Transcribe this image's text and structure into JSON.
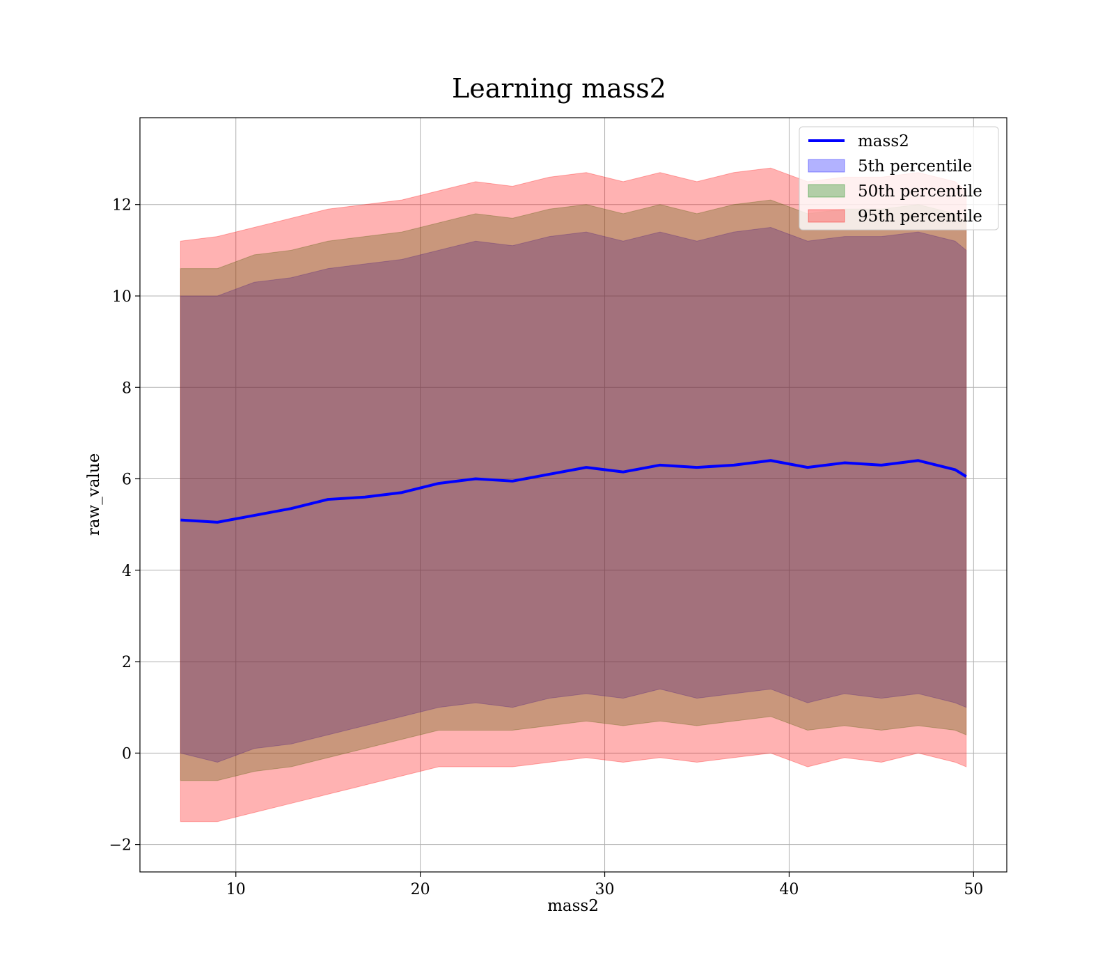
{
  "chart_data": {
    "type": "area",
    "title": "Learning mass2",
    "xlabel": "mass2",
    "ylabel": "raw_value",
    "xlim": [
      4.8,
      51.8
    ],
    "ylim": [
      -2.6,
      13.9
    ],
    "xticks": [
      10,
      20,
      30,
      40,
      50
    ],
    "yticks": [
      -2,
      0,
      2,
      4,
      6,
      8,
      10,
      12
    ],
    "xtick_labels": [
      "10",
      "20",
      "30",
      "40",
      "50"
    ],
    "ytick_labels": [
      "−2",
      "0",
      "2",
      "4",
      "6",
      "8",
      "10",
      "12"
    ],
    "grid": true,
    "legend_position": "top-right",
    "x": [
      7.0,
      9.0,
      11.0,
      13.0,
      15.0,
      17.0,
      19.0,
      21.0,
      23.0,
      25.0,
      27.0,
      29.0,
      31.0,
      33.0,
      35.0,
      37.0,
      39.0,
      41.0,
      43.0,
      45.0,
      47.0,
      49.0,
      49.6
    ],
    "series": [
      {
        "name": "mass2",
        "kind": "line",
        "color": "#0000ff",
        "values": [
          5.1,
          5.05,
          5.2,
          5.35,
          5.55,
          5.6,
          5.7,
          5.9,
          6.0,
          5.95,
          6.1,
          6.25,
          6.15,
          6.3,
          6.25,
          6.3,
          6.4,
          6.25,
          6.35,
          6.3,
          6.4,
          6.2,
          6.05
        ]
      },
      {
        "name": "5th percentile",
        "kind": "band",
        "color": "#0000ff",
        "lower": [
          0.0,
          -0.2,
          0.1,
          0.2,
          0.4,
          0.6,
          0.8,
          1.0,
          1.1,
          1.0,
          1.2,
          1.3,
          1.2,
          1.4,
          1.2,
          1.3,
          1.4,
          1.1,
          1.3,
          1.2,
          1.3,
          1.1,
          1.0
        ],
        "upper": [
          10.0,
          10.0,
          10.3,
          10.4,
          10.6,
          10.7,
          10.8,
          11.0,
          11.2,
          11.1,
          11.3,
          11.4,
          11.2,
          11.4,
          11.2,
          11.4,
          11.5,
          11.2,
          11.3,
          11.3,
          11.4,
          11.2,
          11.0
        ]
      },
      {
        "name": "50th percentile",
        "kind": "band",
        "color": "#008000",
        "lower": [
          -0.6,
          -0.6,
          -0.4,
          -0.3,
          -0.1,
          0.1,
          0.3,
          0.5,
          0.5,
          0.5,
          0.6,
          0.7,
          0.6,
          0.7,
          0.6,
          0.7,
          0.8,
          0.5,
          0.6,
          0.5,
          0.6,
          0.5,
          0.4
        ],
        "upper": [
          10.6,
          10.6,
          10.9,
          11.0,
          11.2,
          11.3,
          11.4,
          11.6,
          11.8,
          11.7,
          11.9,
          12.0,
          11.8,
          12.0,
          11.8,
          12.0,
          12.1,
          11.8,
          11.9,
          11.9,
          12.0,
          11.8,
          11.6
        ]
      },
      {
        "name": "95th percentile",
        "kind": "band",
        "color": "#ff0000",
        "lower": [
          -1.5,
          -1.5,
          -1.3,
          -1.1,
          -0.9,
          -0.7,
          -0.5,
          -0.3,
          -0.3,
          -0.3,
          -0.2,
          -0.1,
          -0.2,
          -0.1,
          -0.2,
          -0.1,
          0.0,
          -0.3,
          -0.1,
          -0.2,
          0.0,
          -0.2,
          -0.3
        ],
        "upper": [
          11.2,
          11.3,
          11.5,
          11.7,
          11.9,
          12.0,
          12.1,
          12.3,
          12.5,
          12.4,
          12.6,
          12.7,
          12.5,
          12.7,
          12.5,
          12.7,
          12.8,
          12.5,
          12.6,
          12.6,
          12.7,
          12.5,
          12.3
        ]
      }
    ]
  }
}
